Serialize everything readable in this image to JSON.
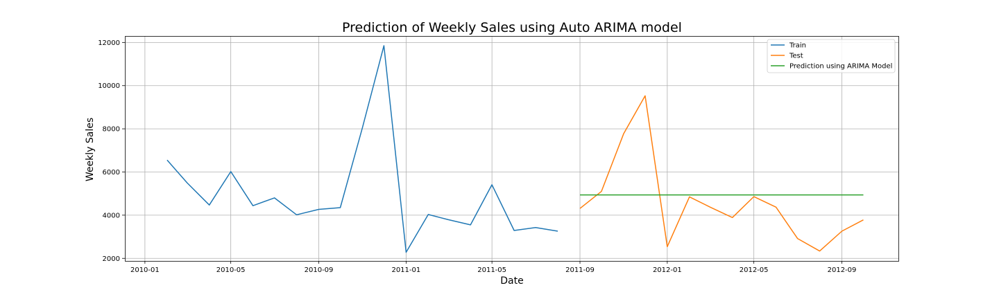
{
  "chart_data": {
    "type": "line",
    "title": "Prediction of Weekly Sales using Auto ARIMA model",
    "xlabel": "Date",
    "ylabel": "Weekly Sales",
    "xlim": [
      "2009-12-04",
      "2012-11-19"
    ],
    "ylim": [
      1880,
      12300
    ],
    "x_ticks": [
      "2010-01",
      "2010-05",
      "2010-09",
      "2011-01",
      "2011-05",
      "2011-09",
      "2012-01",
      "2012-05",
      "2012-09"
    ],
    "y_ticks": [
      2000,
      4000,
      6000,
      8000,
      10000,
      12000
    ],
    "grid": true,
    "legend_position": "top-right",
    "series": [
      {
        "name": "Train",
        "color": "#1f77b4",
        "x": [
          "2010-02-01",
          "2010-03-01",
          "2010-04-01",
          "2010-05-01",
          "2010-06-01",
          "2010-07-01",
          "2010-08-01",
          "2010-09-01",
          "2010-10-01",
          "2010-11-01",
          "2010-12-01",
          "2011-01-01",
          "2011-02-01",
          "2011-03-01",
          "2011-04-01",
          "2011-05-01",
          "2011-06-01",
          "2011-07-01",
          "2011-08-01"
        ],
        "y": [
          6550,
          5500,
          4470,
          6020,
          4440,
          4800,
          4020,
          4270,
          4350,
          8050,
          11850,
          2280,
          4030,
          3790,
          3550,
          5410,
          3290,
          3430,
          3260
        ]
      },
      {
        "name": "Test",
        "color": "#ff7f0e",
        "x": [
          "2011-09-01",
          "2011-10-01",
          "2011-11-01",
          "2011-12-01",
          "2012-01-01",
          "2012-02-01",
          "2012-03-01",
          "2012-04-01",
          "2012-05-01",
          "2012-06-01",
          "2012-07-01",
          "2012-08-01",
          "2012-09-01",
          "2012-10-01"
        ],
        "y": [
          4310,
          5100,
          7770,
          9530,
          2540,
          4850,
          4370,
          3890,
          4860,
          4370,
          2920,
          2340,
          3260,
          3780
        ]
      },
      {
        "name": "Prediction using ARIMA Model",
        "color": "#2ca02c",
        "x": [
          "2011-09-01",
          "2012-10-01"
        ],
        "y": [
          4940,
          4940
        ]
      }
    ]
  }
}
